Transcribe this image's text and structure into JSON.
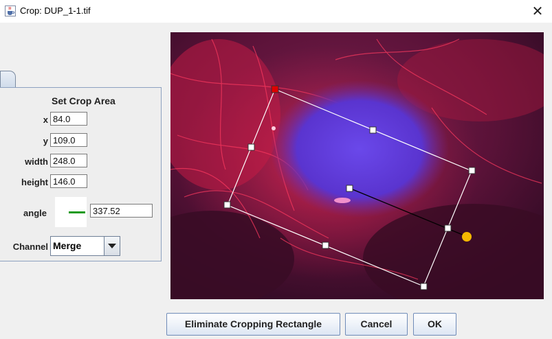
{
  "window": {
    "title": "Crop: DUP_1-1.tif",
    "close_glyph": "✕",
    "app_icon": "java-cup-icon"
  },
  "crop_panel": {
    "title": "Set Crop Area",
    "x_label": "x",
    "x_value": "84.0",
    "y_label": "y",
    "y_value": "109.0",
    "width_label": "width",
    "width_value": "248.0",
    "height_label": "height",
    "height_value": "146.0",
    "angle_label": "angle",
    "angle_value": "337.52",
    "angle_indicator_color": "#1a9a1a",
    "channel_label": "Channel",
    "channel_value": "Merge"
  },
  "image": {
    "description_colors": {
      "cytoskeleton": "#e0204a",
      "nucleus": "#5a3cdc",
      "background": "#2a0a22"
    },
    "crop_rectangle_color": "#ffffff",
    "handle_color": "#ffffff",
    "anchor_handle_color": "#e00000",
    "rotation_handle_color": "#f5b800"
  },
  "buttons": {
    "eliminate": "Eliminate Cropping Rectangle",
    "cancel": "Cancel",
    "ok": "OK"
  }
}
